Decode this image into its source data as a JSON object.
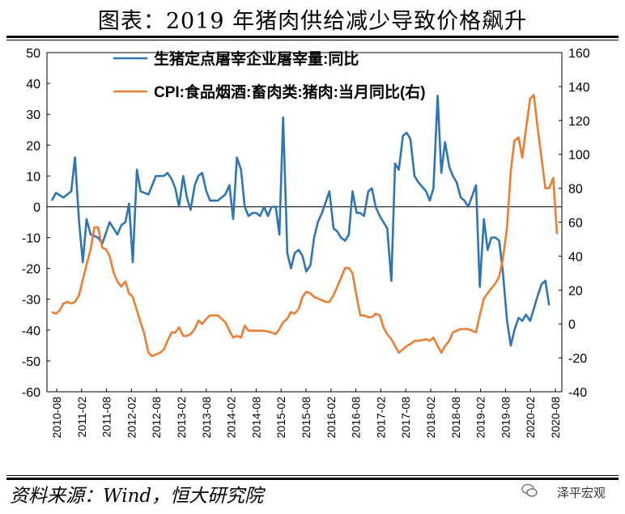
{
  "header": {
    "title": "图表：2019 年猪肉供给减少导致价格飙升"
  },
  "footer": {
    "source": "资料来源：Wind，恒大研究院",
    "brand": "泽平宏观",
    "brand_icon": "wechat-icon"
  },
  "chart_data": {
    "type": "line",
    "x": [
      "2010-08",
      "2011-02",
      "2011-08",
      "2012-02",
      "2012-08",
      "2013-02",
      "2013-08",
      "2014-02",
      "2014-08",
      "2015-02",
      "2015-08",
      "2016-02",
      "2016-08",
      "2017-02",
      "2017-08",
      "2018-02",
      "2018-08",
      "2019-02",
      "2019-08",
      "2020-02",
      "2020-08"
    ],
    "y_left": {
      "min": -60,
      "max": 50,
      "ticks": [
        50,
        40,
        30,
        20,
        10,
        0,
        -10,
        -20,
        -30,
        -40,
        -50,
        -60
      ]
    },
    "y_right": {
      "min": -40,
      "max": 160,
      "ticks": [
        160,
        140,
        120,
        100,
        80,
        60,
        40,
        20,
        0,
        -20,
        -40
      ]
    },
    "legend_position": "top",
    "series": [
      {
        "name": "生猪定点屠宰企业屠宰量:同比",
        "axis": "left",
        "color": "#2e75b6",
        "values": [
          [
            2010.58,
            2
          ],
          [
            2010.67,
            4.5
          ],
          [
            2010.83,
            3
          ],
          [
            2011.0,
            5
          ],
          [
            2011.08,
            16
          ],
          [
            2011.17,
            -5
          ],
          [
            2011.25,
            -18
          ],
          [
            2011.33,
            -4
          ],
          [
            2011.42,
            -9
          ],
          [
            2011.58,
            -10
          ],
          [
            2011.67,
            -12
          ],
          [
            2011.83,
            -5
          ],
          [
            2012.0,
            -9
          ],
          [
            2012.08,
            -6
          ],
          [
            2012.17,
            -5
          ],
          [
            2012.25,
            1
          ],
          [
            2012.33,
            -18
          ],
          [
            2012.42,
            12
          ],
          [
            2012.5,
            5
          ],
          [
            2012.67,
            4
          ],
          [
            2012.83,
            10
          ],
          [
            2013.0,
            10
          ],
          [
            2013.08,
            11
          ],
          [
            2013.17,
            9
          ],
          [
            2013.25,
            6
          ],
          [
            2013.33,
            0
          ],
          [
            2013.42,
            10
          ],
          [
            2013.5,
            3
          ],
          [
            2013.58,
            -1
          ],
          [
            2013.67,
            7
          ],
          [
            2013.75,
            10
          ],
          [
            2013.83,
            11
          ],
          [
            2013.92,
            5
          ],
          [
            2014.0,
            2
          ],
          [
            2014.17,
            2
          ],
          [
            2014.33,
            4
          ],
          [
            2014.42,
            7
          ],
          [
            2014.5,
            -4
          ],
          [
            2014.58,
            16
          ],
          [
            2014.67,
            12
          ],
          [
            2014.75,
            0
          ],
          [
            2014.83,
            -3
          ],
          [
            2014.92,
            -2
          ],
          [
            2015.0,
            -2
          ],
          [
            2015.08,
            -3
          ],
          [
            2015.17,
            0
          ],
          [
            2015.25,
            -3
          ],
          [
            2015.33,
            0
          ],
          [
            2015.42,
            0
          ],
          [
            2015.5,
            -9
          ],
          [
            2015.58,
            29
          ],
          [
            2015.67,
            -15
          ],
          [
            2015.75,
            -20
          ],
          [
            2015.83,
            -15
          ],
          [
            2015.92,
            -14
          ],
          [
            2016.0,
            -16
          ],
          [
            2016.08,
            -21
          ],
          [
            2016.17,
            -19
          ],
          [
            2016.25,
            -10
          ],
          [
            2016.33,
            -5
          ],
          [
            2016.42,
            -2
          ],
          [
            2016.58,
            5
          ],
          [
            2016.67,
            -7
          ],
          [
            2016.75,
            -8
          ],
          [
            2016.83,
            -10
          ],
          [
            2016.92,
            -11
          ],
          [
            2017.0,
            -9
          ],
          [
            2017.08,
            5
          ],
          [
            2017.17,
            -2
          ],
          [
            2017.25,
            -2
          ],
          [
            2017.33,
            -3
          ],
          [
            2017.42,
            5
          ],
          [
            2017.5,
            6
          ],
          [
            2017.58,
            0
          ],
          [
            2017.67,
            -3
          ],
          [
            2017.75,
            -5
          ],
          [
            2017.83,
            -7
          ],
          [
            2017.92,
            -24
          ],
          [
            2018.0,
            14
          ],
          [
            2018.08,
            12
          ],
          [
            2018.17,
            23
          ],
          [
            2018.25,
            24
          ],
          [
            2018.33,
            22
          ],
          [
            2018.42,
            10
          ],
          [
            2018.5,
            8
          ],
          [
            2018.67,
            5
          ],
          [
            2018.75,
            2
          ],
          [
            2018.83,
            6
          ],
          [
            2018.92,
            36
          ],
          [
            2019.0,
            11
          ],
          [
            2019.08,
            21
          ],
          [
            2019.17,
            13
          ],
          [
            2019.25,
            10
          ],
          [
            2019.33,
            8
          ],
          [
            2019.42,
            3
          ],
          [
            2019.5,
            2
          ],
          [
            2019.58,
            0
          ],
          [
            2019.75,
            7
          ],
          [
            2019.83,
            -26
          ],
          [
            2019.92,
            -4
          ],
          [
            2020.0,
            -14
          ],
          [
            2020.08,
            -10
          ],
          [
            2020.17,
            -10
          ],
          [
            2020.25,
            -11
          ],
          [
            2020.33,
            -21
          ],
          [
            2020.42,
            -37
          ],
          [
            2020.5,
            -45
          ],
          [
            2020.58,
            -40
          ],
          [
            2020.67,
            -36
          ],
          [
            2020.75,
            -37
          ],
          [
            2020.83,
            -35
          ],
          [
            2020.92,
            -37
          ],
          [
            2021.0,
            -33
          ],
          [
            2021.08,
            -29
          ],
          [
            2021.17,
            -25
          ],
          [
            2021.25,
            -24
          ],
          [
            2021.33,
            -32
          ]
        ]
      },
      {
        "name": "CPI:食品烟酒:畜肉类:猪肉:当月同比(右)",
        "axis": "right",
        "color": "#ed7d31",
        "values": [
          [
            2010.58,
            7
          ],
          [
            2010.67,
            6
          ],
          [
            2010.75,
            8
          ],
          [
            2010.83,
            12
          ],
          [
            2010.92,
            13
          ],
          [
            2011.0,
            12
          ],
          [
            2011.08,
            13
          ],
          [
            2011.17,
            17
          ],
          [
            2011.25,
            26
          ],
          [
            2011.33,
            35
          ],
          [
            2011.42,
            44
          ],
          [
            2011.5,
            57
          ],
          [
            2011.58,
            57
          ],
          [
            2011.67,
            45
          ],
          [
            2011.75,
            44
          ],
          [
            2011.83,
            40
          ],
          [
            2011.92,
            30
          ],
          [
            2012.0,
            25
          ],
          [
            2012.08,
            22
          ],
          [
            2012.17,
            25
          ],
          [
            2012.25,
            18
          ],
          [
            2012.33,
            16
          ],
          [
            2012.42,
            8
          ],
          [
            2012.5,
            1
          ],
          [
            2012.58,
            -6
          ],
          [
            2012.67,
            -17
          ],
          [
            2012.75,
            -19
          ],
          [
            2012.83,
            -18
          ],
          [
            2012.92,
            -17
          ],
          [
            2013.0,
            -15
          ],
          [
            2013.08,
            -10
          ],
          [
            2013.17,
            -5
          ],
          [
            2013.25,
            -5
          ],
          [
            2013.33,
            -2
          ],
          [
            2013.42,
            -7
          ],
          [
            2013.5,
            -7
          ],
          [
            2013.58,
            -6
          ],
          [
            2013.67,
            -3
          ],
          [
            2013.75,
            2
          ],
          [
            2013.83,
            0
          ],
          [
            2013.92,
            3
          ],
          [
            2014.0,
            5
          ],
          [
            2014.17,
            5
          ],
          [
            2014.33,
            1
          ],
          [
            2014.42,
            -4
          ],
          [
            2014.5,
            -8
          ],
          [
            2014.58,
            -7
          ],
          [
            2014.67,
            -8
          ],
          [
            2014.75,
            -1
          ],
          [
            2014.83,
            -4
          ],
          [
            2014.92,
            -4
          ],
          [
            2015.0,
            -4
          ],
          [
            2015.17,
            -4
          ],
          [
            2015.33,
            -5
          ],
          [
            2015.42,
            -6
          ],
          [
            2015.5,
            -3
          ],
          [
            2015.58,
            1
          ],
          [
            2015.67,
            3
          ],
          [
            2015.75,
            7
          ],
          [
            2015.83,
            6
          ],
          [
            2015.92,
            9
          ],
          [
            2016.0,
            16
          ],
          [
            2016.08,
            19
          ],
          [
            2016.17,
            18
          ],
          [
            2016.25,
            16
          ],
          [
            2016.33,
            15
          ],
          [
            2016.42,
            14
          ],
          [
            2016.5,
            13
          ],
          [
            2016.58,
            13
          ],
          [
            2016.67,
            17
          ],
          [
            2016.75,
            22
          ],
          [
            2016.83,
            27
          ],
          [
            2016.92,
            33
          ],
          [
            2017.0,
            33
          ],
          [
            2017.08,
            30
          ],
          [
            2017.17,
            16
          ],
          [
            2017.25,
            5
          ],
          [
            2017.33,
            5
          ],
          [
            2017.42,
            4
          ],
          [
            2017.5,
            4
          ],
          [
            2017.58,
            6
          ],
          [
            2017.67,
            5
          ],
          [
            2017.75,
            -2
          ],
          [
            2017.83,
            -6
          ],
          [
            2017.92,
            -9
          ],
          [
            2018.0,
            -13
          ],
          [
            2018.08,
            -17
          ],
          [
            2018.17,
            -15
          ],
          [
            2018.25,
            -13
          ],
          [
            2018.33,
            -12
          ],
          [
            2018.42,
            -10
          ],
          [
            2018.5,
            -10
          ],
          [
            2018.67,
            -9
          ],
          [
            2018.75,
            -10
          ],
          [
            2018.83,
            -8
          ],
          [
            2018.92,
            -13
          ],
          [
            2019.0,
            -17
          ],
          [
            2019.08,
            -13
          ],
          [
            2019.17,
            -10
          ],
          [
            2019.25,
            -5
          ],
          [
            2019.33,
            -4
          ],
          [
            2019.42,
            -3
          ],
          [
            2019.58,
            -3
          ],
          [
            2019.75,
            -5
          ],
          [
            2019.83,
            5
          ],
          [
            2019.92,
            15
          ],
          [
            2020.0,
            18
          ],
          [
            2020.08,
            21
          ],
          [
            2020.17,
            24
          ],
          [
            2020.25,
            28
          ],
          [
            2020.33,
            38
          ],
          [
            2020.42,
            57
          ],
          [
            2020.5,
            90
          ],
          [
            2020.58,
            108
          ],
          [
            2020.67,
            110
          ],
          [
            2020.75,
            98
          ],
          [
            2020.83,
            115
          ],
          [
            2020.92,
            133
          ],
          [
            2021.0,
            135
          ],
          [
            2021.08,
            116
          ],
          [
            2021.17,
            97
          ],
          [
            2021.25,
            80
          ],
          [
            2021.33,
            80
          ],
          [
            2021.42,
            86
          ],
          [
            2021.5,
            53
          ]
        ]
      }
    ]
  }
}
